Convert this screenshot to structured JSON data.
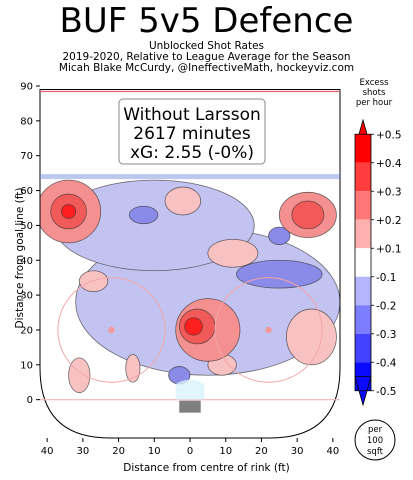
{
  "header": {
    "title": "BUF 5v5 Defence",
    "subtitle1": "Unblocked Shot Rates",
    "subtitle2": "2019-2020, Relative to League Average for the Season",
    "subtitle3": "Micah Blake McCurdy, @IneffectiveMath, hockeyviz.com"
  },
  "info_box": {
    "line1": "Without Larsson",
    "line2": "2617 minutes",
    "line3": "xG: 2.55 (-0%)"
  },
  "colorbar": {
    "title_line1": "Excess",
    "title_line2": "shots",
    "title_line3": "per hour",
    "labels": [
      "+0.5",
      "+0.4",
      "+0.3",
      "+0.2",
      "+0.1",
      "-0.1",
      "-0.2",
      "-0.3",
      "-0.4",
      "-0.5"
    ],
    "colors": [
      "#ff0000",
      "#ff3d3d",
      "#ff7878",
      "#ffb1b1",
      "#ffffff",
      "#b4b4ff",
      "#7d7dff",
      "#4242ff",
      "#0a0aff"
    ],
    "scale_label_line1": "per",
    "scale_label_line2": "100",
    "scale_label_line3": "sqft"
  },
  "chart_data": {
    "type": "heatmap",
    "title": "BUF 5v5 Defence",
    "xlabel": "Distance from centre of rink (ft)",
    "ylabel": "Distance from goal line (ft)",
    "xlim": [
      42,
      -42
    ],
    "ylim": [
      -11,
      90
    ],
    "xticks": [
      "40",
      "30",
      "20",
      "10",
      "0",
      "10",
      "20",
      "30",
      "40"
    ],
    "yticks": [
      "0",
      "10",
      "20",
      "30",
      "40",
      "50",
      "60",
      "70",
      "80",
      "90"
    ],
    "regions": [
      {
        "kind": "excess",
        "x": -33,
        "y": 53,
        "rx": 8,
        "ry": 6.5,
        "level": 0.2
      },
      {
        "kind": "excess",
        "x": -33,
        "y": 53,
        "rx": 4.5,
        "ry": 4,
        "level": 0.3
      },
      {
        "kind": "excess",
        "x": -34,
        "y": 18,
        "rx": 7,
        "ry": 8,
        "level": 0.1
      },
      {
        "kind": "excess",
        "x": -5,
        "y": 20,
        "rx": 9,
        "ry": 9,
        "level": 0.2
      },
      {
        "kind": "excess",
        "x": -2,
        "y": 21,
        "rx": 5,
        "ry": 5,
        "level": 0.3
      },
      {
        "kind": "excess",
        "x": -1,
        "y": 21,
        "rx": 2.5,
        "ry": 2.5,
        "level": 0.4
      },
      {
        "kind": "excess",
        "x": 34,
        "y": 54,
        "rx": 9,
        "ry": 9,
        "level": 0.2
      },
      {
        "kind": "excess",
        "x": 34,
        "y": 54,
        "rx": 5,
        "ry": 5,
        "level": 0.3
      },
      {
        "kind": "excess",
        "x": 34,
        "y": 54,
        "rx": 2,
        "ry": 2,
        "level": 0.4
      },
      {
        "kind": "excess",
        "x": -12,
        "y": 42,
        "rx": 7,
        "ry": 4,
        "level": 0.1
      },
      {
        "kind": "excess",
        "x": 2,
        "y": 57,
        "rx": 5,
        "ry": 4,
        "level": 0.1
      },
      {
        "kind": "excess",
        "x": 27,
        "y": 34,
        "rx": 4,
        "ry": 3,
        "level": 0.1
      },
      {
        "kind": "excess",
        "x": 31,
        "y": 7,
        "rx": 3,
        "ry": 5,
        "level": 0.1
      },
      {
        "kind": "excess",
        "x": -9,
        "y": 10,
        "rx": 4,
        "ry": 3,
        "level": 0.1
      },
      {
        "kind": "excess",
        "x": 16,
        "y": 9,
        "rx": 2,
        "ry": 4,
        "level": 0.1
      },
      {
        "kind": "deficit",
        "x": -5,
        "y": 28,
        "rx": 37,
        "ry": 21,
        "level": -0.1
      },
      {
        "kind": "deficit",
        "x": 10,
        "y": 50,
        "rx": 28,
        "ry": 13,
        "level": -0.1
      },
      {
        "kind": "deficit",
        "x": -25,
        "y": 36,
        "rx": 12,
        "ry": 4,
        "level": -0.2
      },
      {
        "kind": "deficit",
        "x": -25,
        "y": 47,
        "rx": 3,
        "ry": 2.5,
        "level": -0.2
      },
      {
        "kind": "deficit",
        "x": 13,
        "y": 53,
        "rx": 4,
        "ry": 2.5,
        "level": -0.2
      },
      {
        "kind": "deficit",
        "x": 3,
        "y": 7,
        "rx": 3,
        "ry": 2.5,
        "level": -0.2
      }
    ]
  }
}
